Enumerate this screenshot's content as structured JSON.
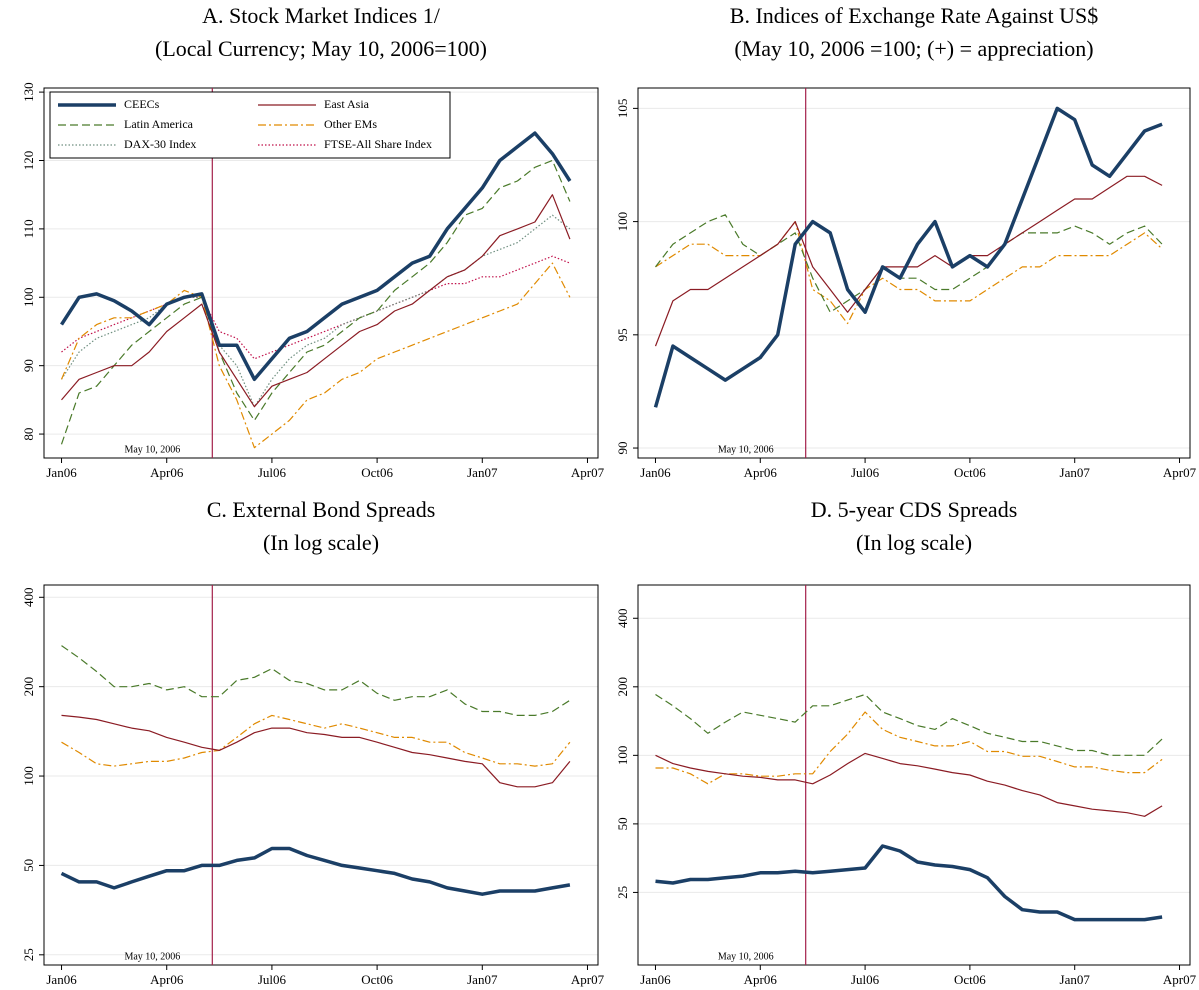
{
  "chart_data": [
    {
      "type": "line",
      "title": "A. Stock Market Indices 1/",
      "subtitle": "(Local Currency; May 10, 2006=100)",
      "legend": "top-left",
      "grid": true,
      "log": false,
      "xlim": [
        -0.5,
        15.3
      ],
      "ylim": [
        76.5,
        130.6
      ],
      "xticks": [
        {
          "value": 0,
          "label": "Jan06"
        },
        {
          "value": 3,
          "label": "Apr06"
        },
        {
          "value": 6,
          "label": "Jul06"
        },
        {
          "value": 9,
          "label": "Oct06"
        },
        {
          "value": 12,
          "label": "Jan07"
        },
        {
          "value": 15,
          "label": "Apr07"
        }
      ],
      "yticks": [
        80,
        90,
        100,
        110,
        120,
        130
      ],
      "vline": {
        "x": 4.3,
        "label": "May 10, 2006",
        "color": "#a3204a"
      },
      "x": [
        0,
        0.5,
        1,
        1.5,
        2,
        2.5,
        3,
        3.5,
        4,
        4.5,
        5,
        5.5,
        6,
        6.5,
        7,
        7.5,
        8,
        8.5,
        9,
        9.5,
        10,
        10.5,
        11,
        11.5,
        12,
        12.5,
        13,
        13.5,
        14,
        14.5
      ],
      "series": [
        {
          "name": "CEECs",
          "color": "#1b3f66",
          "width": 3.5,
          "dash": "solid",
          "values": [
            96,
            100,
            100.5,
            99.5,
            98,
            96,
            99,
            100,
            100.5,
            93,
            93,
            88,
            91,
            94,
            95,
            97,
            99,
            100,
            101,
            103,
            105,
            106,
            110,
            113,
            116,
            120,
            122,
            124,
            121,
            117
          ]
        },
        {
          "name": "East Asia",
          "color": "#8b1c24",
          "width": 1.2,
          "dash": "solid",
          "values": [
            85,
            88,
            89,
            90,
            90,
            92,
            95,
            97,
            99,
            92,
            88,
            84,
            87,
            88,
            89,
            91,
            93,
            95,
            96,
            98,
            99,
            101,
            103,
            104,
            106,
            109,
            110,
            111,
            115,
            108.5
          ]
        },
        {
          "name": "Latin America",
          "color": "#4a7a2a",
          "width": 1.2,
          "dash": "dashed",
          "values": [
            78.5,
            86,
            87,
            90,
            93,
            95,
            97,
            99,
            100,
            92,
            86,
            82,
            86,
            89,
            92,
            93,
            95,
            97,
            98,
            101,
            103,
            105,
            108,
            112,
            113,
            116,
            117,
            119,
            120,
            114
          ]
        },
        {
          "name": "Other EMs",
          "color": "#e08a00",
          "width": 1.2,
          "dash": "dashdot",
          "values": [
            88,
            94,
            96,
            97,
            97,
            98,
            99,
            101,
            100,
            90,
            85,
            78,
            80,
            82,
            85,
            86,
            88,
            89,
            91,
            92,
            93,
            94,
            95,
            96,
            97,
            98,
            99,
            102,
            105,
            100
          ]
        },
        {
          "name": "DAX-30 Index",
          "color": "#6f8f80",
          "width": 1.2,
          "dash": "dotted",
          "values": [
            88,
            92,
            94,
            95,
            96,
            97,
            99,
            100,
            100,
            93,
            90,
            84,
            88,
            91,
            93,
            94,
            96,
            97,
            98,
            99,
            100,
            101,
            103,
            104,
            106,
            107,
            108,
            110,
            112,
            110
          ]
        },
        {
          "name": "FTSE-All Share Index",
          "color": "#c0104a",
          "width": 1.2,
          "dash": "dotted",
          "values": [
            92,
            94,
            95,
            96,
            97,
            98,
            99,
            100,
            100,
            95,
            94,
            91,
            92,
            93,
            94,
            95,
            96,
            97,
            98,
            99,
            100,
            101,
            102,
            102,
            103,
            103,
            104,
            105,
            106,
            105
          ]
        }
      ]
    },
    {
      "type": "line",
      "title": "B. Indices of Exchange Rate Against US$",
      "subtitle": "(May 10, 2006 =100; (+) = appreciation)",
      "grid": true,
      "log": false,
      "xlim": [
        -0.5,
        15.3
      ],
      "ylim": [
        89.56,
        105.9
      ],
      "xticks": [
        {
          "value": 0,
          "label": "Jan06"
        },
        {
          "value": 3,
          "label": "Apr06"
        },
        {
          "value": 6,
          "label": "Jul06"
        },
        {
          "value": 9,
          "label": "Oct06"
        },
        {
          "value": 12,
          "label": "Jan07"
        },
        {
          "value": 15,
          "label": "Apr07"
        }
      ],
      "yticks": [
        90,
        95,
        100,
        105
      ],
      "vline": {
        "x": 4.3,
        "label": "May 10, 2006",
        "color": "#a3204a"
      },
      "x": [
        0,
        0.5,
        1,
        1.5,
        2,
        2.5,
        3,
        3.5,
        4,
        4.5,
        5,
        5.5,
        6,
        6.5,
        7,
        7.5,
        8,
        8.5,
        9,
        9.5,
        10,
        10.5,
        11,
        11.5,
        12,
        12.5,
        13,
        13.5,
        14,
        14.5
      ],
      "series": [
        {
          "color": "#1b3f66",
          "width": 3.5,
          "dash": "solid",
          "values": [
            91.8,
            94.5,
            94,
            93.5,
            93,
            93.5,
            94,
            95,
            99,
            100,
            99.5,
            97,
            96,
            98,
            97.5,
            99,
            100,
            98,
            98.5,
            98,
            99,
            101,
            103,
            105,
            104.5,
            102.5,
            102,
            103,
            104,
            104.3
          ]
        },
        {
          "color": "#8b1c24",
          "width": 1.2,
          "dash": "solid",
          "values": [
            94.5,
            96.5,
            97,
            97,
            97.5,
            98,
            98.5,
            99,
            100,
            98,
            97,
            96,
            97,
            98,
            98,
            98,
            98.5,
            98,
            98.5,
            98.5,
            99,
            99.5,
            100,
            100.5,
            101,
            101,
            101.5,
            102,
            102,
            101.6
          ]
        },
        {
          "color": "#4a7a2a",
          "width": 1.2,
          "dash": "dashed",
          "values": [
            98,
            99,
            99.5,
            100,
            100.3,
            99,
            98.5,
            99,
            99.5,
            97.5,
            96,
            96.5,
            97,
            98,
            97.5,
            97.5,
            97,
            97,
            97.5,
            98,
            99,
            99.5,
            99.5,
            99.5,
            99.8,
            99.5,
            99,
            99.5,
            99.8,
            99
          ]
        },
        {
          "color": "#e08a00",
          "width": 1.2,
          "dash": "dashdot",
          "values": [
            98,
            98.5,
            99,
            99,
            98.5,
            98.5,
            98.5,
            99,
            100,
            97,
            96.5,
            95.5,
            97,
            97.5,
            97,
            97,
            96.5,
            96.5,
            96.5,
            97,
            97.5,
            98,
            98,
            98.5,
            98.5,
            98.5,
            98.5,
            99,
            99.5,
            98.8
          ]
        }
      ]
    },
    {
      "type": "line",
      "title": "C. External Bond Spreads",
      "subtitle": "(In log scale)",
      "grid": true,
      "log": true,
      "xlim": [
        -0.5,
        15.3
      ],
      "ylim": [
        23.1,
        440
      ],
      "xticks": [
        {
          "value": 0,
          "label": "Jan06"
        },
        {
          "value": 3,
          "label": "Apr06"
        },
        {
          "value": 6,
          "label": "Jul06"
        },
        {
          "value": 9,
          "label": "Oct06"
        },
        {
          "value": 12,
          "label": "Jan07"
        },
        {
          "value": 15,
          "label": "Apr07"
        }
      ],
      "yticks": [
        25,
        50,
        100,
        200,
        400
      ],
      "vline": {
        "x": 4.3,
        "label": "May 10, 2006",
        "color": "#a3204a"
      },
      "x": [
        0,
        0.5,
        1,
        1.5,
        2,
        2.5,
        3,
        3.5,
        4,
        4.5,
        5,
        5.5,
        6,
        6.5,
        7,
        7.5,
        8,
        8.5,
        9,
        9.5,
        10,
        10.5,
        11,
        11.5,
        12,
        12.5,
        13,
        13.5,
        14,
        14.5
      ],
      "series": [
        {
          "color": "#1b3f66",
          "width": 3.5,
          "dash": "solid",
          "values": [
            47,
            44,
            44,
            42,
            44,
            46,
            48,
            48,
            50,
            50,
            52,
            53,
            57,
            57,
            54,
            52,
            50,
            49,
            48,
            47,
            45,
            44,
            42,
            41,
            40,
            41,
            41,
            41,
            42,
            43
          ]
        },
        {
          "color": "#8b1c24",
          "width": 1.2,
          "dash": "solid",
          "values": [
            160,
            158,
            155,
            150,
            145,
            142,
            135,
            130,
            125,
            122,
            130,
            140,
            145,
            145,
            140,
            138,
            135,
            135,
            130,
            125,
            120,
            118,
            115,
            112,
            110,
            95,
            92,
            92,
            95,
            112
          ]
        },
        {
          "color": "#4a7a2a",
          "width": 1.2,
          "dash": "dashed",
          "values": [
            275,
            250,
            225,
            200,
            200,
            205,
            195,
            200,
            185,
            185,
            210,
            215,
            230,
            210,
            205,
            195,
            195,
            210,
            190,
            180,
            185,
            185,
            195,
            175,
            165,
            165,
            160,
            160,
            165,
            180
          ]
        },
        {
          "color": "#e08a00",
          "width": 1.2,
          "dash": "dashdot",
          "values": [
            130,
            120,
            110,
            108,
            110,
            112,
            112,
            115,
            120,
            122,
            135,
            150,
            160,
            155,
            150,
            145,
            150,
            145,
            140,
            135,
            135,
            130,
            130,
            120,
            115,
            110,
            110,
            108,
            110,
            130
          ]
        }
      ]
    },
    {
      "type": "line",
      "title": "D. 5-year CDS Spreads",
      "subtitle": "(In log scale)",
      "grid": true,
      "log": true,
      "xlim": [
        -0.5,
        15.3
      ],
      "ylim": [
        12,
        560
      ],
      "xticks": [
        {
          "value": 0,
          "label": "Jan06"
        },
        {
          "value": 3,
          "label": "Apr06"
        },
        {
          "value": 6,
          "label": "Jul06"
        },
        {
          "value": 9,
          "label": "Oct06"
        },
        {
          "value": 12,
          "label": "Jan07"
        },
        {
          "value": 15,
          "label": "Apr07"
        }
      ],
      "yticks": [
        25,
        50,
        100,
        200,
        400
      ],
      "vline": {
        "x": 4.3,
        "label": "May 10, 2006",
        "color": "#a3204a"
      },
      "x": [
        0,
        0.5,
        1,
        1.5,
        2,
        2.5,
        3,
        3.5,
        4,
        4.5,
        5,
        5.5,
        6,
        6.5,
        7,
        7.5,
        8,
        8.5,
        9,
        9.5,
        10,
        10.5,
        11,
        11.5,
        12,
        12.5,
        13,
        13.5,
        14,
        14.5
      ],
      "series": [
        {
          "color": "#1b3f66",
          "width": 3.5,
          "dash": "solid",
          "values": [
            28,
            27.5,
            28.5,
            28.5,
            29,
            29.5,
            30.5,
            30.5,
            31,
            30.5,
            31,
            31.5,
            32,
            40,
            38,
            34,
            33,
            32.5,
            31.5,
            29,
            24,
            21,
            20.5,
            20.5,
            19,
            19,
            19,
            19,
            19,
            19.5
          ]
        },
        {
          "color": "#8b1c24",
          "width": 1.2,
          "dash": "solid",
          "values": [
            100,
            92,
            88,
            85,
            83,
            81,
            80,
            78,
            78,
            75,
            82,
            92,
            102,
            97,
            92,
            90,
            87,
            84,
            82,
            77,
            74,
            70,
            67,
            62,
            60,
            58,
            57,
            56,
            54,
            60
          ]
        },
        {
          "color": "#4a7a2a",
          "width": 1.2,
          "dash": "dashed",
          "values": [
            185,
            165,
            145,
            125,
            140,
            155,
            150,
            145,
            140,
            165,
            165,
            175,
            185,
            155,
            145,
            135,
            130,
            145,
            135,
            125,
            120,
            115,
            115,
            110,
            105,
            105,
            100,
            100,
            100,
            118
          ]
        },
        {
          "color": "#e08a00",
          "width": 1.2,
          "dash": "dashdot",
          "values": [
            88,
            88,
            83,
            75,
            83,
            83,
            81,
            81,
            83,
            83,
            104,
            124,
            155,
            130,
            120,
            115,
            110,
            110,
            115,
            104,
            104,
            99,
            99,
            94,
            89,
            89,
            86,
            84,
            84,
            96
          ]
        }
      ]
    }
  ]
}
